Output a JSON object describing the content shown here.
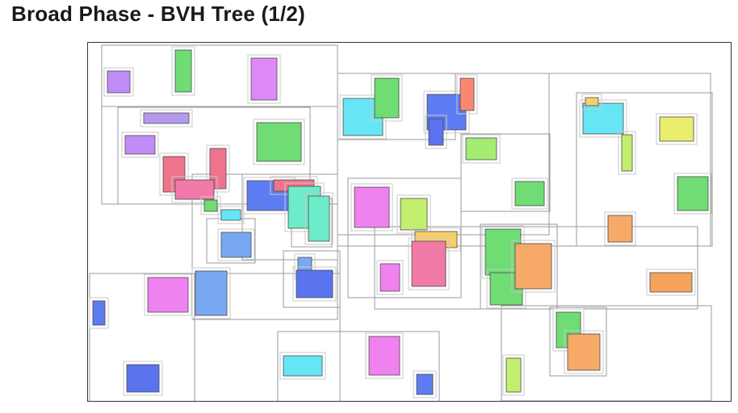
{
  "slide": {
    "title": "Broad Phase - BVH Tree (1/2)"
  },
  "colors": {
    "node_stroke": "#9a9a9a",
    "leaf_stroke": "#c9c9c9",
    "palette": [
      "#c08cf7",
      "#6fdc74",
      "#dd88f7",
      "#b49aee",
      "#f0738c",
      "#f27aa8",
      "#6cc4f7",
      "#66e6f4",
      "#5e7cf2",
      "#fa8870",
      "#a4ec73",
      "#ebee6c",
      "#f7a968",
      "#6cecc8",
      "#78a8f2",
      "#ef82ef",
      "#f6cf6b",
      "#c3ef6e",
      "#f5a35c",
      "#5a74f0"
    ]
  }
}
